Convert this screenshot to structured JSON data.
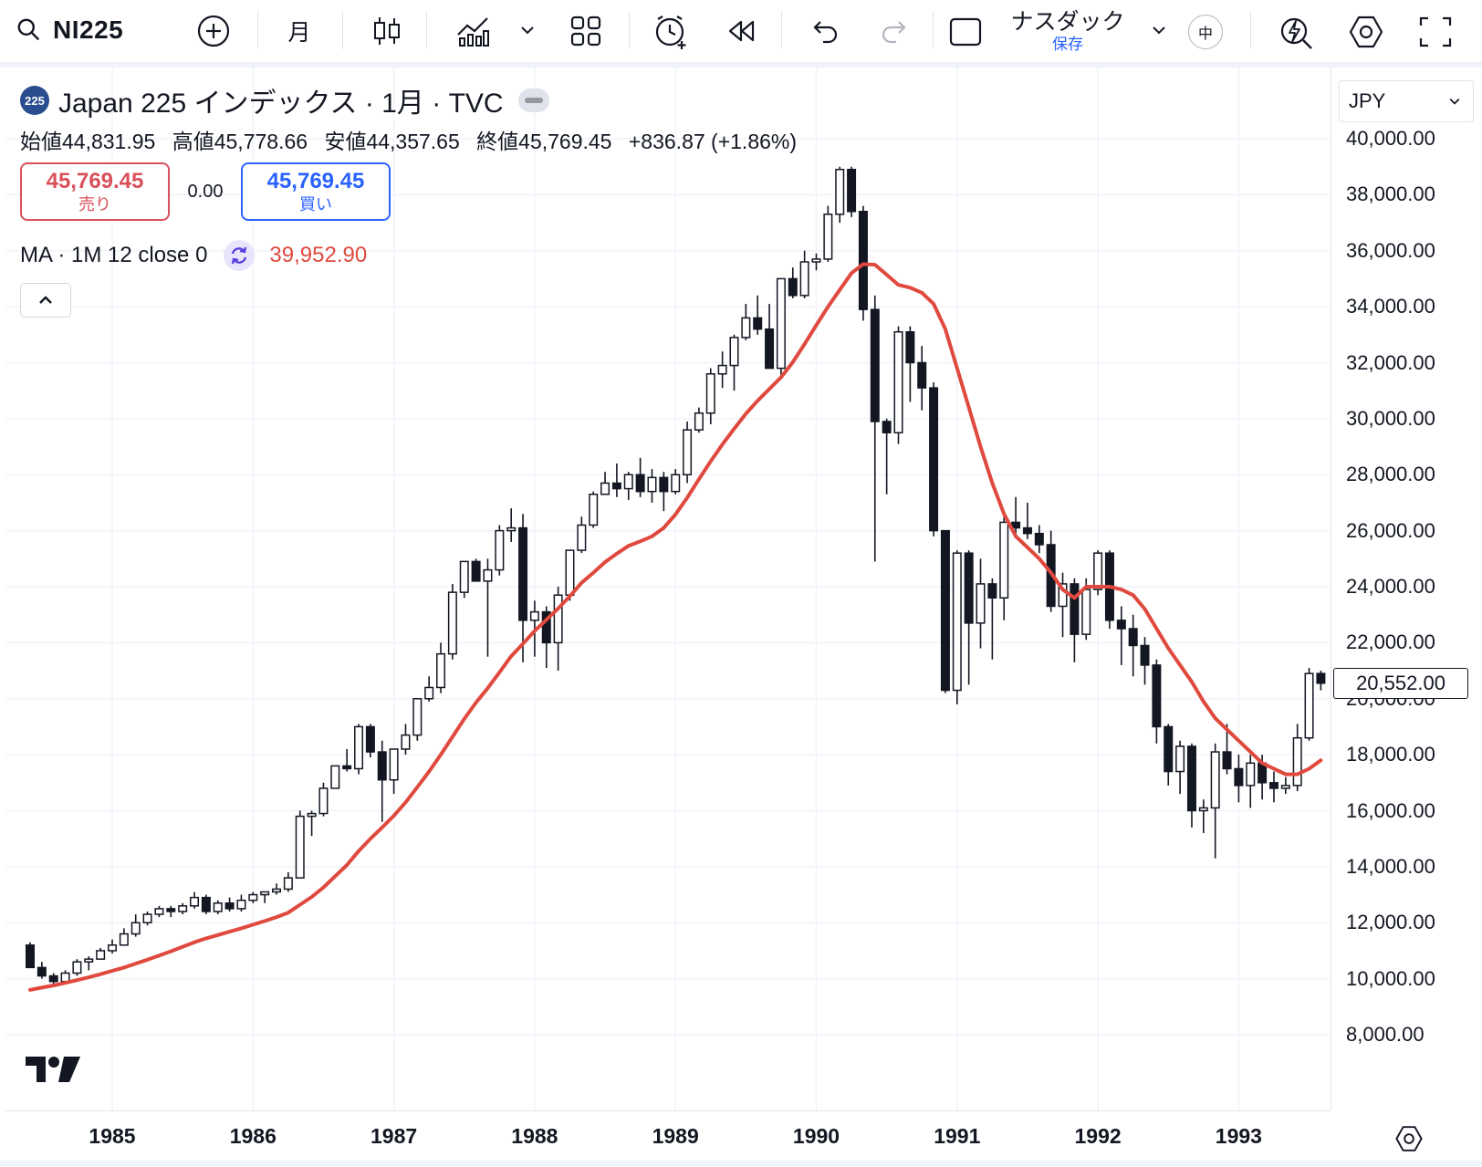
{
  "toolbar": {
    "symbol": "NI225",
    "interval": "月",
    "layout_name": "ナスダック",
    "layout_status": "保存",
    "lang_badge": "中"
  },
  "legend": {
    "logo_text": "225",
    "title": "Japan 225 インデックス · 1月 · TVC",
    "open_label": "始値",
    "open": "44,831.95",
    "high_label": "高値",
    "high": "45,778.66",
    "low_label": "安値",
    "low": "44,357.65",
    "close_label": "終値",
    "close": "45,769.45",
    "change": "+836.87 (+1.86%)",
    "sell_price": "45,769.45",
    "sell_label": "売り",
    "spread": "0.00",
    "buy_price": "45,769.45",
    "buy_label": "買い",
    "ma_label": "MA · 1M 12 close 0",
    "ma_value": "39,952.90"
  },
  "price_scale": {
    "currency": "JPY",
    "last_price": "20,552.00"
  },
  "chart_data": {
    "type": "candlestick",
    "interval": "1M",
    "y_ticks": [
      40000,
      38000,
      36000,
      34000,
      32000,
      30000,
      28000,
      26000,
      24000,
      22000,
      20000,
      18000,
      16000,
      14000,
      12000,
      10000,
      8000
    ],
    "y_tick_labels": [
      "40,000.00",
      "38,000.00",
      "36,000.00",
      "34,000.00",
      "32,000.00",
      "30,000.00",
      "28,000.00",
      "26,000.00",
      "24,000.00",
      "22,000.00",
      "20,000.00",
      "18,000.00",
      "16,000.00",
      "14,000.00",
      "12,000.00",
      "10,000.00",
      "8,000.00"
    ],
    "x_ticks": [
      "1985",
      "1986",
      "1987",
      "1988",
      "1989",
      "1990",
      "1991",
      "1992",
      "1993"
    ],
    "ylim": [
      6700,
      41000
    ],
    "x_range": [
      "1984-06",
      "1993-05"
    ],
    "series": [
      {
        "name": "NI225",
        "start": "1984-06",
        "ohlc": [
          [
            11200,
            11300,
            10400,
            10400
          ],
          [
            10400,
            10600,
            10000,
            10100
          ],
          [
            10100,
            10200,
            9700,
            9900
          ],
          [
            9900,
            10300,
            9900,
            10200
          ],
          [
            10200,
            10700,
            10100,
            10600
          ],
          [
            10600,
            10800,
            10300,
            10700
          ],
          [
            10700,
            11100,
            10700,
            11000
          ],
          [
            11000,
            11400,
            10900,
            11200
          ],
          [
            11200,
            11800,
            11200,
            11600
          ],
          [
            11600,
            12300,
            11500,
            12000
          ],
          [
            12000,
            12400,
            11900,
            12300
          ],
          [
            12300,
            12600,
            12200,
            12500
          ],
          [
            12500,
            12600,
            12200,
            12400
          ],
          [
            12400,
            12700,
            12300,
            12600
          ],
          [
            12600,
            13100,
            12500,
            12900
          ],
          [
            12900,
            13000,
            12300,
            12400
          ],
          [
            12400,
            12800,
            12300,
            12700
          ],
          [
            12700,
            12900,
            12400,
            12500
          ],
          [
            12500,
            13000,
            12400,
            12800
          ],
          [
            12800,
            13100,
            12700,
            13000
          ],
          [
            13000,
            13100,
            12700,
            13100
          ],
          [
            13100,
            13400,
            13000,
            13200
          ],
          [
            13200,
            13800,
            13100,
            13600
          ],
          [
            13600,
            16000,
            13600,
            15800
          ],
          [
            15800,
            16000,
            15100,
            15900
          ],
          [
            15900,
            17000,
            15800,
            16800
          ],
          [
            16800,
            17600,
            16800,
            17600
          ],
          [
            17600,
            18200,
            17400,
            17500
          ],
          [
            17500,
            19100,
            17300,
            19000
          ],
          [
            19000,
            19100,
            17900,
            18100
          ],
          [
            18100,
            18500,
            15600,
            17100
          ],
          [
            17100,
            18200,
            16600,
            18200
          ],
          [
            18200,
            19100,
            18000,
            18700
          ],
          [
            18700,
            20000,
            18500,
            20000
          ],
          [
            20000,
            20800,
            19900,
            20400
          ],
          [
            20400,
            22000,
            20200,
            21600
          ],
          [
            21600,
            24100,
            21400,
            23800
          ],
          [
            23800,
            24900,
            23600,
            24900
          ],
          [
            24900,
            25000,
            24400,
            24200
          ],
          [
            24200,
            25000,
            21500,
            24600
          ],
          [
            24600,
            26200,
            24400,
            26000
          ],
          [
            26000,
            26800,
            25600,
            26100
          ],
          [
            26100,
            26600,
            21300,
            22800
          ],
          [
            22800,
            23500,
            21500,
            23100
          ],
          [
            23100,
            23300,
            21100,
            22000
          ],
          [
            22000,
            24000,
            21000,
            23700
          ],
          [
            23700,
            25300,
            23500,
            25300
          ],
          [
            25300,
            26500,
            25200,
            26200
          ],
          [
            26200,
            27400,
            26100,
            27300
          ],
          [
            27300,
            28100,
            27300,
            27700
          ],
          [
            27700,
            28400,
            27200,
            27500
          ],
          [
            27500,
            28100,
            27100,
            28000
          ],
          [
            28000,
            28600,
            27200,
            27400
          ],
          [
            27400,
            28200,
            27000,
            27900
          ],
          [
            27900,
            28100,
            26700,
            27400
          ],
          [
            27400,
            28200,
            27300,
            28000
          ],
          [
            28000,
            29900,
            27700,
            29600
          ],
          [
            29600,
            30400,
            29500,
            30200
          ],
          [
            30200,
            31800,
            29800,
            31600
          ],
          [
            31600,
            32400,
            31100,
            31900
          ],
          [
            31900,
            33000,
            31000,
            32900
          ],
          [
            32900,
            34100,
            32800,
            33600
          ],
          [
            33600,
            34400,
            33000,
            33200
          ],
          [
            33200,
            34100,
            31800,
            31800
          ],
          [
            31800,
            35000,
            31500,
            35000
          ],
          [
            35000,
            35400,
            34300,
            34400
          ],
          [
            34400,
            36000,
            34300,
            35600
          ],
          [
            35600,
            35900,
            35300,
            35700
          ],
          [
            35700,
            37600,
            35600,
            37300
          ],
          [
            37300,
            39000,
            37000,
            38900
          ],
          [
            38900,
            39000,
            37200,
            37400
          ],
          [
            37400,
            37600,
            33500,
            33900
          ],
          [
            33900,
            34400,
            24900,
            29900
          ],
          [
            29900,
            30000,
            27300,
            29500
          ],
          [
            29500,
            33300,
            29100,
            33100
          ],
          [
            33100,
            33300,
            30600,
            32000
          ],
          [
            32000,
            32600,
            30300,
            31100
          ],
          [
            31100,
            31300,
            25800,
            26000
          ],
          [
            26000,
            26000,
            20200,
            20300
          ],
          [
            20300,
            25300,
            19800,
            25200
          ],
          [
            25200,
            25300,
            20500,
            22700
          ],
          [
            22700,
            25000,
            21800,
            24100
          ],
          [
            24100,
            24300,
            21400,
            23600
          ],
          [
            23600,
            26500,
            22800,
            26300
          ],
          [
            26300,
            27200,
            25800,
            26100
          ],
          [
            26100,
            27000,
            25700,
            25900
          ],
          [
            25900,
            26200,
            25200,
            25500
          ],
          [
            25500,
            26000,
            23100,
            23300
          ],
          [
            23300,
            24500,
            22200,
            24100
          ],
          [
            24100,
            24300,
            21300,
            22300
          ],
          [
            22300,
            24300,
            22100,
            23900
          ],
          [
            23900,
            25300,
            23700,
            25200
          ],
          [
            25200,
            25300,
            22500,
            22800
          ],
          [
            22800,
            23300,
            21200,
            22500
          ],
          [
            22500,
            23000,
            20800,
            21900
          ],
          [
            21900,
            22200,
            20500,
            21200
          ],
          [
            21200,
            21400,
            18400,
            19000
          ],
          [
            19000,
            19100,
            16900,
            17400
          ],
          [
            17400,
            18500,
            16600,
            18300
          ],
          [
            18300,
            18400,
            15400,
            16000
          ],
          [
            16000,
            16400,
            15200,
            16100
          ],
          [
            16100,
            18400,
            14300,
            18100
          ],
          [
            18100,
            19100,
            17300,
            17500
          ],
          [
            17500,
            18000,
            16300,
            16900
          ],
          [
            16900,
            18000,
            16100,
            17700
          ],
          [
            17700,
            18000,
            16400,
            17000
          ],
          [
            17000,
            17400,
            16300,
            16800
          ],
          [
            16800,
            17200,
            16600,
            16900
          ],
          [
            16900,
            19100,
            16700,
            18600
          ],
          [
            18600,
            21100,
            18500,
            20900
          ],
          [
            20900,
            21000,
            20300,
            20552
          ]
        ],
        "ma12": [
          9600,
          9680,
          9760,
          9850,
          9950,
          10050,
          10160,
          10280,
          10400,
          10540,
          10680,
          10830,
          10980,
          11140,
          11300,
          11440,
          11560,
          11680,
          11800,
          11930,
          12060,
          12200,
          12360,
          12640,
          12920,
          13260,
          13660,
          14060,
          14560,
          15000,
          15400,
          15820,
          16300,
          16840,
          17400,
          18000,
          18640,
          19280,
          19860,
          20380,
          20940,
          21520,
          21960,
          22420,
          22820,
          23220,
          23660,
          24140,
          24500,
          24880,
          25180,
          25460,
          25620,
          25800,
          26100,
          26580,
          27180,
          27840,
          28480,
          29080,
          29640,
          30180,
          30640,
          31060,
          31480,
          32020,
          32660,
          33340,
          34000,
          34600,
          35200,
          35520,
          35500,
          35140,
          34780,
          34680,
          34500,
          34100,
          33200,
          31800,
          30400,
          29000,
          27700,
          26600,
          25800,
          25400,
          25000,
          24500,
          23900,
          23600,
          24000,
          24000,
          24000,
          23900,
          23700,
          23200,
          22500,
          21800,
          21200,
          20600,
          19900,
          19300,
          18900,
          18500,
          18100,
          17700,
          17500,
          17300,
          17300,
          17500,
          17800
        ]
      }
    ]
  }
}
